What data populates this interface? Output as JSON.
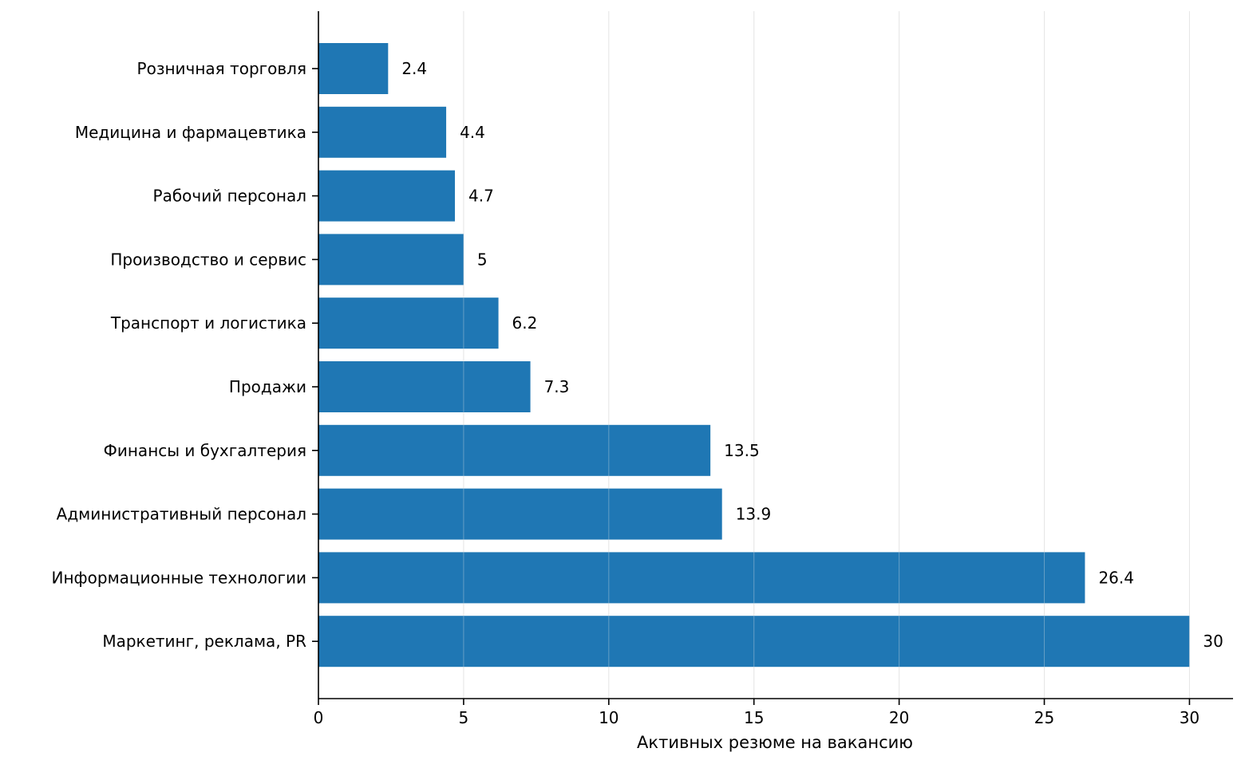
{
  "chart_data": {
    "type": "bar",
    "orientation": "horizontal",
    "categories": [
      "Розничная торговля",
      "Медицина и фармацевтика",
      "Рабочий персонал",
      "Производство и сервис",
      "Транспорт и логистика",
      "Продажи",
      "Финансы и бухгалтерия",
      "Административный персонал",
      "Информационные технологии",
      "Маркетинг, реклама, PR"
    ],
    "values": [
      2.4,
      4.4,
      4.7,
      5,
      6.2,
      7.3,
      13.5,
      13.9,
      26.4,
      30
    ],
    "value_labels": [
      "2.4",
      "4.4",
      "4.7",
      "5",
      "6.2",
      "7.3",
      "13.5",
      "13.9",
      "26.4",
      "30"
    ],
    "xlabel": "Активных резюме на вакансию",
    "ylabel": "",
    "xlim": [
      0,
      31.5
    ],
    "xticks": [
      0,
      5,
      10,
      15,
      20,
      25,
      30
    ],
    "xtick_labels": [
      "0",
      "5",
      "10",
      "15",
      "20",
      "25",
      "30"
    ],
    "grid": "vertical",
    "bar_color": "#1f77b4"
  }
}
